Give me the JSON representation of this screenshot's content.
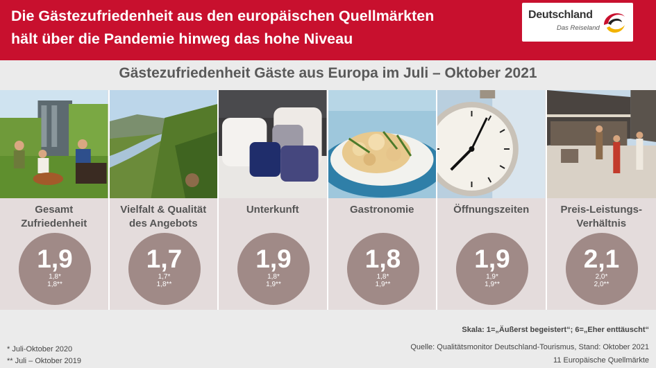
{
  "header": {
    "title_line1": "Die Gästezufriedenheit aus den europäischen Quellmärkten",
    "title_line2": "hält über die Pandemie hinweg das hohe Niveau",
    "logo_name": "Deutschland",
    "logo_tagline": "Das Reiseland"
  },
  "subtitle": "Gästezufriedenheit Gäste aus Europa im Juli – Oktober 2021",
  "categories": [
    {
      "label_line1": "Gesamt",
      "label_line2": "Zufriedenheit",
      "score": "1,9",
      "score_2020": "1,8*",
      "score_2019": "1,8**",
      "photo": "people-picnic-vineyard"
    },
    {
      "label_line1": "Vielfalt & Qualität",
      "label_line2": "des Angebots",
      "score": "1,7",
      "score_2020": "1,7*",
      "score_2019": "1,8**",
      "photo": "river-valley-vineyard"
    },
    {
      "label_line1": "Unterkunft",
      "label_line2": "",
      "score": "1,9",
      "score_2020": "1,8*",
      "score_2019": "1,9**",
      "photo": "hotel-bed-pillows"
    },
    {
      "label_line1": "Gastronomie",
      "label_line2": "",
      "score": "1,8",
      "score_2020": "1,8*",
      "score_2019": "1,9**",
      "photo": "pasta-dish"
    },
    {
      "label_line1": "Öffnungszeiten",
      "label_line2": "",
      "score": "1,9",
      "score_2020": "1,9*",
      "score_2019": "1,9**",
      "photo": "alarm-clock"
    },
    {
      "label_line1": "Preis-Leistungs-",
      "label_line2": "Verhältnis",
      "score": "2,1",
      "score_2020": "2,0*",
      "score_2019": "2,0**",
      "photo": "shopping-street"
    }
  ],
  "footer": {
    "note_2020": "* Juli-Oktober 2020",
    "note_2019": "** Juli – Oktober 2019",
    "scale": "Skala: 1=„Äußerst begeistert“; 6=„Eher enttäuscht“",
    "source": "Quelle: Qualitätsmonitor Deutschland-Tourismus, Stand: Oktober 2021",
    "markets": "11 Europäische Quellmärkte"
  },
  "colors": {
    "banner": "#c8102e",
    "circle": "#a08a87",
    "panel": "#e4dcdc",
    "background": "#ebebeb"
  }
}
